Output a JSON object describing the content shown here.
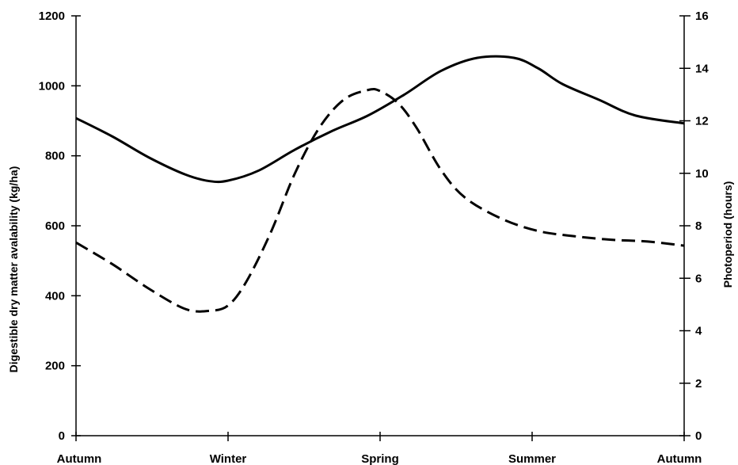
{
  "chart_data": {
    "type": "line",
    "categories": [
      "Autumn",
      "Winter",
      "Spring",
      "Summer",
      "Autumn"
    ],
    "x": [
      0,
      0.25,
      0.5,
      0.75,
      1.0
    ],
    "xlim": [
      0,
      1
    ],
    "left_axis": {
      "label": "Digestible dry matter avalability (kg/ha)",
      "ylim": [
        0,
        1200
      ],
      "ticks": [
        0,
        200,
        400,
        600,
        800,
        1000,
        1200
      ]
    },
    "right_axis": {
      "label": "Photoperiod (hours)",
      "ylim": [
        0,
        16
      ],
      "ticks": [
        0,
        2,
        4,
        6,
        8,
        10,
        12,
        14,
        16
      ]
    },
    "series": [
      {
        "axis": "left",
        "style": "dashed",
        "x": [
          0,
          0.06,
          0.12,
          0.18,
          0.22,
          0.25,
          0.28,
          0.32,
          0.36,
          0.4,
          0.44,
          0.48,
          0.5,
          0.53,
          0.56,
          0.6,
          0.64,
          0.7,
          0.76,
          0.82,
          0.88,
          0.94,
          1.0
        ],
        "values": [
          552,
          490,
          420,
          362,
          357,
          372,
          440,
          580,
          750,
          880,
          960,
          988,
          985,
          950,
          880,
          760,
          680,
          620,
          585,
          570,
          560,
          555,
          543
        ]
      },
      {
        "axis": "right",
        "style": "solid",
        "x": [
          0,
          0.06,
          0.12,
          0.18,
          0.22,
          0.25,
          0.3,
          0.36,
          0.42,
          0.48,
          0.54,
          0.6,
          0.66,
          0.72,
          0.76,
          0.8,
          0.86,
          0.92,
          1.0
        ],
        "values": [
          12.1,
          11.4,
          10.6,
          9.95,
          9.7,
          9.72,
          10.1,
          10.9,
          11.6,
          12.2,
          13.0,
          13.9,
          14.4,
          14.4,
          14.0,
          13.4,
          12.8,
          12.2,
          11.9
        ]
      }
    ],
    "grid": false,
    "legend": "none"
  }
}
